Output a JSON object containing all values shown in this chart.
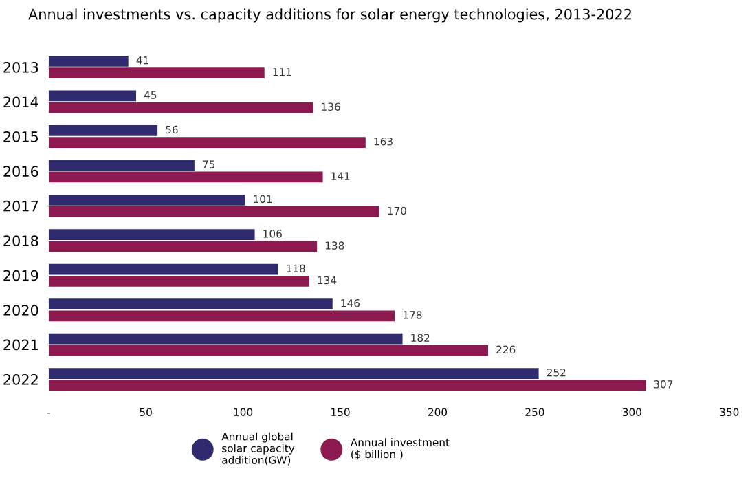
{
  "chart_data": {
    "type": "bar",
    "orientation": "horizontal",
    "title": "Annual investments vs. capacity additions for solar energy technologies, 2013-2022",
    "categories": [
      "2013",
      "2014",
      "2015",
      "2016",
      "2017",
      "2018",
      "2019",
      "2020",
      "2021",
      "2022"
    ],
    "series": [
      {
        "name": "Annual global\nsolar capacity\naddition(GW)",
        "color": "#2f2b6e",
        "values": [
          41,
          45,
          56,
          75,
          101,
          106,
          118,
          146,
          182,
          252
        ]
      },
      {
        "name": "Annual investment\n($ billion )",
        "color": "#8c1a50",
        "values": [
          111,
          136,
          163,
          141,
          170,
          138,
          134,
          178,
          226,
          307
        ]
      }
    ],
    "xlim": [
      0,
      350
    ],
    "xticks": [
      {
        "value": 0,
        "label": "-"
      },
      50,
      100,
      150,
      200,
      250,
      300,
      350
    ],
    "data_labels": true,
    "grid": false,
    "legend": "bottom",
    "marker": "circle"
  }
}
